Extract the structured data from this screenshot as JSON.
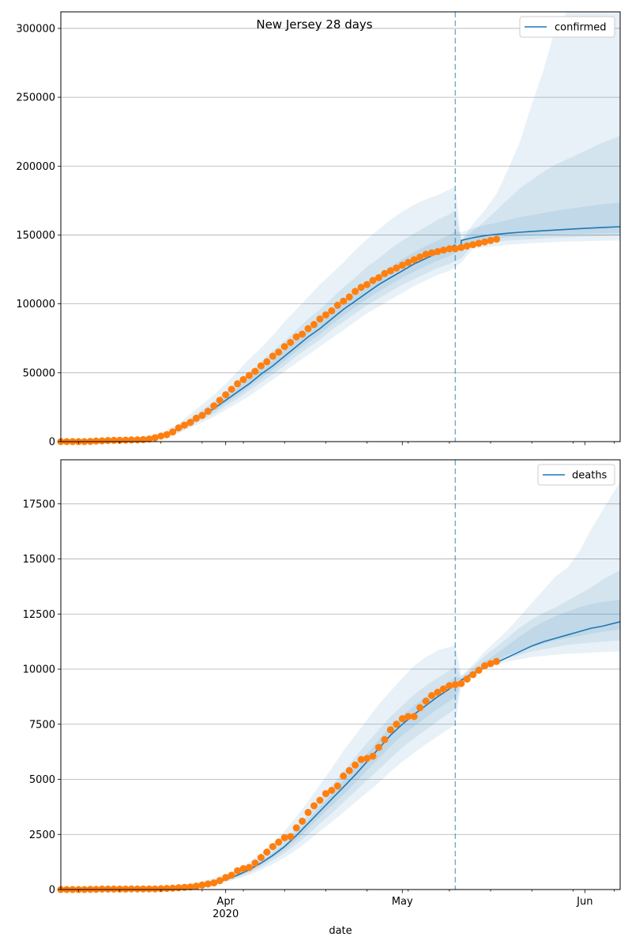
{
  "chart_data": [
    {
      "type": "line",
      "title": "New Jersey 28 days",
      "series_name": "confirmed",
      "xlabel": "",
      "ylabel": "",
      "ylim": [
        0,
        312000
      ],
      "yticks": [
        0,
        50000,
        100000,
        150000,
        200000,
        250000,
        300000
      ],
      "xlim": [
        0,
        95
      ],
      "forecast_start_day": 67,
      "grid": "y",
      "legend": "top-right",
      "observed": {
        "x": [
          0,
          1,
          2,
          3,
          4,
          5,
          6,
          7,
          8,
          9,
          10,
          11,
          12,
          13,
          14,
          15,
          16,
          17,
          18,
          19,
          20,
          21,
          22,
          23,
          24,
          25,
          26,
          27,
          28,
          29,
          30,
          31,
          32,
          33,
          34,
          35,
          36,
          37,
          38,
          39,
          40,
          41,
          42,
          43,
          44,
          45,
          46,
          47,
          48,
          49,
          50,
          51,
          52,
          53,
          54,
          55,
          56,
          57,
          58,
          59,
          60,
          61,
          62,
          63,
          64,
          65,
          66,
          67,
          68,
          69,
          70,
          71,
          72,
          73,
          74
        ],
        "y": [
          0,
          0,
          0,
          0,
          0,
          200,
          400,
          600,
          800,
          900,
          1000,
          1100,
          1200,
          1300,
          1500,
          1900,
          2800,
          4000,
          5000,
          7000,
          10000,
          12000,
          14000,
          17000,
          19000,
          22000,
          26000,
          30000,
          34000,
          38000,
          42000,
          45000,
          48000,
          51000,
          55000,
          58000,
          62000,
          65000,
          69000,
          72000,
          76000,
          78000,
          82000,
          85000,
          89000,
          92000,
          95000,
          99000,
          102000,
          105000,
          109000,
          112000,
          114000,
          117000,
          119000,
          122000,
          124000,
          126000,
          128000,
          130000,
          132000,
          134000,
          136000,
          137000,
          138000,
          139000,
          140000,
          140000,
          141000,
          142000,
          143000,
          144000,
          145000,
          146000,
          147000
        ]
      },
      "fitted": {
        "x": [
          0,
          14,
          17,
          20,
          22,
          24,
          26,
          28,
          30,
          32,
          34,
          36,
          38,
          40,
          42,
          44,
          46,
          48,
          50,
          52,
          54,
          56,
          58,
          60,
          62,
          64,
          66,
          67,
          68,
          70,
          72,
          74,
          76,
          78,
          80,
          82,
          84,
          86,
          88,
          90,
          92,
          95
        ],
        "y": [
          0,
          1500,
          4000,
          9000,
          14000,
          19000,
          24000,
          30000,
          36000,
          42000,
          49000,
          55000,
          62000,
          69000,
          76000,
          82000,
          89000,
          96000,
          102000,
          108000,
          114000,
          119000,
          124000,
          129000,
          133000,
          137000,
          140000,
          143000,
          146000,
          148000,
          149500,
          150500,
          151300,
          152000,
          152600,
          153100,
          153600,
          154100,
          154600,
          155000,
          155500,
          156000
        ]
      },
      "band_x": [
        0,
        14,
        17,
        20,
        22,
        24,
        26,
        28,
        30,
        32,
        34,
        36,
        38,
        40,
        42,
        44,
        46,
        48,
        50,
        52,
        54,
        56,
        58,
        60,
        62,
        64,
        66,
        67,
        68,
        70,
        72,
        74,
        76,
        78,
        80,
        82,
        84,
        86,
        88,
        90,
        92,
        95
      ],
      "bands": [
        {
          "lower": [
            0,
            1000,
            3000,
            6000,
            10000,
            14000,
            18000,
            23000,
            28000,
            33000,
            39000,
            45000,
            51000,
            57000,
            63000,
            69000,
            75000,
            81000,
            87000,
            93000,
            98000,
            103000,
            108000,
            113000,
            117000,
            121000,
            124000,
            127000,
            130000,
            140000,
            141000,
            142000,
            143000,
            143500,
            144000,
            144500,
            145000,
            145200,
            145400,
            145600,
            145800,
            146000
          ],
          "upper": [
            0,
            2500,
            6000,
            13000,
            20000,
            27000,
            34000,
            42000,
            51000,
            60000,
            68000,
            77000,
            87000,
            96000,
            105000,
            114000,
            122000,
            130000,
            139000,
            147000,
            154000,
            161000,
            167000,
            172000,
            176000,
            179000,
            183000,
            185000,
            146000,
            158000,
            168000,
            180000,
            198000,
            218000,
            245000,
            270000,
            300000,
            312000,
            312000,
            312000,
            312000,
            312000
          ]
        },
        {
          "lower": [
            0,
            1200,
            3300,
            7000,
            11000,
            16000,
            20000,
            26000,
            31000,
            37000,
            43000,
            49000,
            55000,
            62000,
            68000,
            74000,
            81000,
            87000,
            93000,
            99000,
            104000,
            109000,
            114000,
            118000,
            122000,
            126000,
            129000,
            131000,
            133000,
            143000,
            144000,
            145000,
            146000,
            146500,
            147000,
            147500,
            148000,
            148300,
            148600,
            148900,
            149200,
            149500
          ],
          "upper": [
            0,
            2100,
            5000,
            11000,
            17000,
            23000,
            29000,
            36000,
            43000,
            50000,
            58000,
            66000,
            73000,
            81000,
            89000,
            96000,
            104000,
            112000,
            119000,
            127000,
            133000,
            140000,
            146000,
            151000,
            156000,
            161000,
            165000,
            168000,
            146000,
            153000,
            160000,
            168000,
            176000,
            184000,
            190000,
            196000,
            201000,
            205000,
            209000,
            213000,
            217000,
            222000
          ]
        },
        {
          "lower": [
            0,
            1350,
            3600,
            7900,
            12500,
            17500,
            22000,
            28000,
            33500,
            39500,
            46000,
            52000,
            58500,
            65500,
            72000,
            78000,
            85000,
            91500,
            97500,
            103500,
            109000,
            114000,
            119000,
            123500,
            127500,
            131500,
            134500,
            137000,
            139500,
            145000,
            146500,
            147500,
            148500,
            149000,
            149500,
            150000,
            150300,
            150600,
            150800,
            151000,
            151200,
            151400
          ],
          "upper": [
            0,
            1700,
            4500,
            10200,
            15500,
            21000,
            26500,
            32500,
            39000,
            45500,
            52500,
            59000,
            66500,
            74000,
            81000,
            88000,
            95000,
            102500,
            109000,
            115500,
            121500,
            127000,
            132500,
            137500,
            142000,
            146000,
            150000,
            153000,
            152000,
            155000,
            157000,
            159000,
            161000,
            163000,
            164500,
            166000,
            167500,
            168800,
            170000,
            171200,
            172300,
            173500
          ]
        }
      ]
    },
    {
      "type": "line",
      "title": "",
      "series_name": "deaths",
      "xlabel": "date",
      "ylabel": "",
      "ylim": [
        0,
        19500
      ],
      "yticks": [
        0,
        2500,
        5000,
        7500,
        10000,
        12500,
        15000,
        17500
      ],
      "xlim": [
        0,
        95
      ],
      "forecast_start_day": 67,
      "grid": "y",
      "legend": "top-right",
      "xticks": [
        {
          "day": 28,
          "label": "Apr",
          "sublabel": "2020"
        },
        {
          "day": 58,
          "label": "May",
          "sublabel": ""
        },
        {
          "day": 89,
          "label": "Jun",
          "sublabel": ""
        }
      ],
      "observed": {
        "x": [
          0,
          1,
          2,
          3,
          4,
          5,
          6,
          7,
          8,
          9,
          10,
          11,
          12,
          13,
          14,
          15,
          16,
          17,
          18,
          19,
          20,
          21,
          22,
          23,
          24,
          25,
          26,
          27,
          28,
          29,
          30,
          31,
          32,
          33,
          34,
          35,
          36,
          37,
          38,
          39,
          40,
          41,
          42,
          43,
          44,
          45,
          46,
          47,
          48,
          49,
          50,
          51,
          52,
          53,
          54,
          55,
          56,
          57,
          58,
          59,
          60,
          61,
          62,
          63,
          64,
          65,
          66,
          67,
          68,
          69,
          70,
          71,
          72,
          73,
          74
        ],
        "y": [
          0,
          0,
          0,
          0,
          0,
          10,
          10,
          20,
          20,
          20,
          20,
          20,
          30,
          30,
          30,
          30,
          30,
          40,
          50,
          60,
          80,
          100,
          120,
          150,
          200,
          250,
          300,
          400,
          550,
          650,
          850,
          950,
          1000,
          1200,
          1450,
          1700,
          1950,
          2150,
          2350,
          2400,
          2800,
          3100,
          3500,
          3800,
          4050,
          4350,
          4500,
          4700,
          5150,
          5400,
          5650,
          5900,
          5950,
          6050,
          6450,
          6800,
          7250,
          7500,
          7750,
          7850,
          7850,
          8250,
          8550,
          8800,
          8950,
          9100,
          9250,
          9300,
          9350,
          9550,
          9750,
          9950,
          10150,
          10250,
          10350
        ]
      },
      "fitted": {
        "x": [
          0,
          14,
          18,
          22,
          24,
          26,
          28,
          30,
          32,
          34,
          36,
          38,
          40,
          42,
          44,
          46,
          48,
          50,
          52,
          54,
          56,
          58,
          60,
          62,
          64,
          66,
          67,
          68,
          70,
          72,
          74,
          76,
          78,
          80,
          82,
          84,
          86,
          88,
          90,
          92,
          95
        ],
        "y": [
          0,
          20,
          60,
          150,
          220,
          320,
          450,
          650,
          900,
          1200,
          1550,
          1950,
          2450,
          3000,
          3550,
          4100,
          4650,
          5200,
          5800,
          6400,
          7000,
          7500,
          7950,
          8350,
          8750,
          9100,
          9300,
          9500,
          9800,
          10100,
          10300,
          10550,
          10800,
          11050,
          11250,
          11400,
          11550,
          11700,
          11850,
          11950,
          12150
        ]
      },
      "band_x": [
        0,
        14,
        18,
        22,
        24,
        26,
        28,
        30,
        32,
        34,
        36,
        38,
        40,
        42,
        44,
        46,
        48,
        50,
        52,
        54,
        56,
        58,
        60,
        62,
        64,
        66,
        67,
        68,
        70,
        72,
        74,
        76,
        78,
        80,
        82,
        84,
        86,
        88,
        90,
        92,
        95
      ],
      "bands": [
        {
          "lower": [
            0,
            10,
            40,
            100,
            160,
            230,
            330,
            480,
            650,
            900,
            1150,
            1450,
            1800,
            2200,
            2650,
            3050,
            3500,
            3950,
            4400,
            4850,
            5350,
            5800,
            6200,
            6600,
            6950,
            7300,
            7500,
            9300,
            9700,
            10000,
            10200,
            10350,
            10450,
            10550,
            10600,
            10650,
            10700,
            10720,
            10750,
            10780,
            10800
          ],
          "upper": [
            0,
            40,
            110,
            260,
            380,
            520,
            680,
            930,
            1250,
            1650,
            2100,
            2650,
            3300,
            4000,
            4750,
            5500,
            6300,
            7000,
            7700,
            8400,
            9000,
            9600,
            10150,
            10550,
            10850,
            11000,
            11100,
            9700,
            10200,
            10800,
            11300,
            11800,
            12400,
            13000,
            13600,
            14200,
            14600,
            15300,
            16300,
            17200,
            18500
          ]
        },
        {
          "lower": [
            0,
            13,
            48,
            120,
            185,
            265,
            380,
            550,
            750,
            1020,
            1320,
            1650,
            2050,
            2500,
            3000,
            3450,
            3950,
            4450,
            4950,
            5450,
            5950,
            6450,
            6850,
            7250,
            7650,
            8000,
            8200,
            9350,
            9750,
            10100,
            10350,
            10500,
            10650,
            10800,
            10900,
            11000,
            11100,
            11150,
            11200,
            11250,
            11300
          ],
          "upper": [
            0,
            32,
            90,
            210,
            300,
            420,
            560,
            780,
            1050,
            1400,
            1800,
            2250,
            2800,
            3400,
            4050,
            4700,
            5350,
            6000,
            6650,
            7250,
            7850,
            8350,
            8850,
            9250,
            9600,
            9950,
            10150,
            9650,
            10100,
            10600,
            11000,
            11450,
            11900,
            12250,
            12550,
            12800,
            13100,
            13400,
            13700,
            14050,
            14500
          ]
        },
        {
          "lower": [
            0,
            16,
            54,
            135,
            200,
            290,
            415,
            600,
            830,
            1120,
            1440,
            1800,
            2250,
            2750,
            3300,
            3800,
            4300,
            4850,
            5400,
            5950,
            6500,
            7000,
            7400,
            7800,
            8200,
            8550,
            8750,
            9400,
            9800,
            10150,
            10400,
            10650,
            10850,
            11000,
            11150,
            11300,
            11400,
            11500,
            11600,
            11700,
            11800
          ],
          "upper": [
            0,
            25,
            72,
            170,
            245,
            350,
            485,
            700,
            970,
            1280,
            1650,
            2050,
            2600,
            3150,
            3750,
            4350,
            4950,
            5550,
            6150,
            6800,
            7400,
            7900,
            8350,
            8750,
            9100,
            9450,
            9650,
            9600,
            9950,
            10350,
            10700,
            11100,
            11500,
            11850,
            12150,
            12400,
            12600,
            12800,
            12950,
            13050,
            13150
          ]
        }
      ]
    }
  ],
  "colors": {
    "line": "#1f77b4",
    "band": "#1f77b4",
    "points": "#ff7f0e",
    "forecast_line": "#1f77b4",
    "grid": "#b0b0b0",
    "axis": "#000000"
  }
}
